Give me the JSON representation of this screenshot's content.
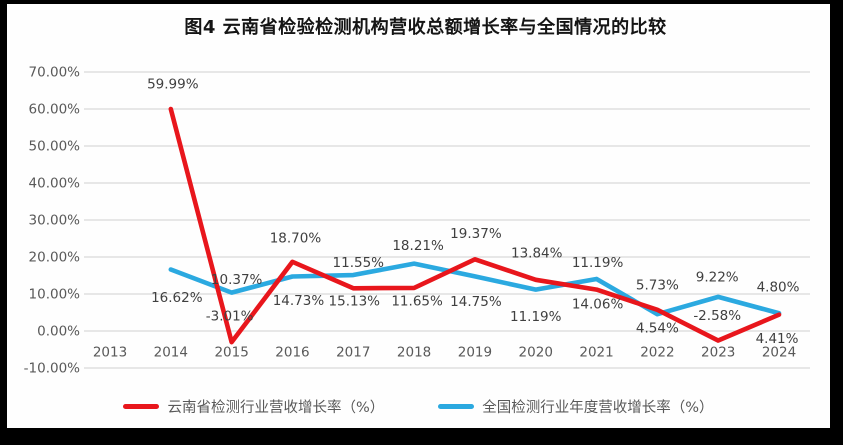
{
  "title": "图4  云南省检验检测机构营收总额增长率与全国情况的比较",
  "chart_data": {
    "type": "line",
    "title": "图4  云南省检验检测机构营收总额增长率与全国情况的比较",
    "categories": [
      "2013",
      "2014",
      "2015",
      "2016",
      "2017",
      "2018",
      "2019",
      "2020",
      "2021",
      "2022",
      "2023",
      "2024"
    ],
    "series": [
      {
        "name": "云南省检测行业营收增长率（%）",
        "color": "#e8161c",
        "values": [
          null,
          59.99,
          -3.01,
          18.7,
          11.55,
          11.65,
          19.37,
          13.84,
          11.19,
          5.73,
          -2.58,
          4.41
        ],
        "labels": [
          null,
          "59.99%",
          "-3.01%",
          "18.70%",
          "11.55%",
          "11.65%",
          "19.37%",
          "13.84%",
          "11.19%",
          "5.73%",
          "-2.58%",
          "4.41%"
        ]
      },
      {
        "name": "全国检测行业年度营收增长率（%）",
        "color": "#2ba9e0",
        "values": [
          null,
          16.62,
          10.37,
          14.73,
          15.13,
          18.21,
          14.75,
          11.19,
          14.06,
          4.54,
          9.22,
          4.8
        ],
        "labels": [
          null,
          "16.62%",
          "10.37%",
          "14.73%",
          "15.13%",
          "18.21%",
          "14.75%",
          "11.19%",
          "14.06%",
          "4.54%",
          "9.22%",
          "4.80%"
        ]
      }
    ],
    "yticks": [
      "70.00%",
      "60.00%",
      "50.00%",
      "40.00%",
      "30.00%",
      "20.00%",
      "10.00%",
      "0.00%",
      "-10.00%"
    ],
    "ylim": [
      -10,
      70
    ],
    "grid": "horizontal",
    "grid_color": "#d9d9d9",
    "legend_position": "bottom"
  }
}
